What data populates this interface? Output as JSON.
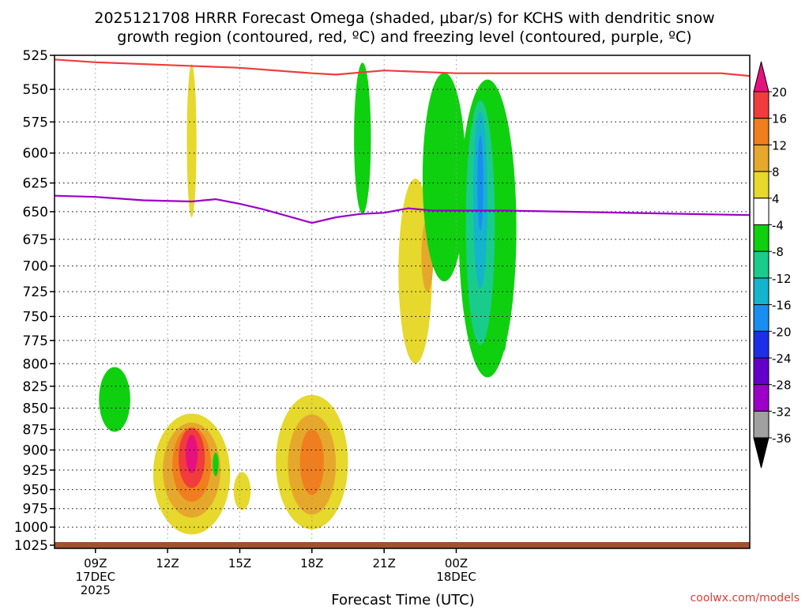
{
  "chart_data": {
    "type": "heatmap",
    "title_line1": "2025121708 HRRR Forecast Omega (shaded, μbar/s) for KCHS with dendritic snow",
    "title_line2": "growth region (contoured, red, ºC) and freezing level (contoured, purple, ºC)",
    "xlabel": "Forecast Time (UTC)",
    "credit": "coolwx.com/models",
    "y_ticks": [
      525,
      550,
      575,
      600,
      625,
      650,
      675,
      700,
      725,
      750,
      775,
      800,
      825,
      850,
      875,
      900,
      925,
      950,
      975,
      1000,
      1025
    ],
    "y_tick_labels": [
      "525",
      "550",
      "575",
      "600",
      "625",
      "650",
      "675",
      "700",
      "725",
      "750",
      "775",
      "800",
      "825",
      "850",
      "875",
      "900",
      "925",
      "950",
      "975",
      "1000",
      "1025"
    ],
    "x_range_hours": [
      7.3,
      36.2
    ],
    "x_ticks": [
      {
        "hour": 9,
        "label": "09Z",
        "sub1": "17DEC",
        "sub2": "2025"
      },
      {
        "hour": 12,
        "label": "12Z",
        "sub1": "",
        "sub2": ""
      },
      {
        "hour": 15,
        "label": "15Z",
        "sub1": "",
        "sub2": ""
      },
      {
        "hour": 18,
        "label": "18Z",
        "sub1": "",
        "sub2": ""
      },
      {
        "hour": 21,
        "label": "21Z",
        "sub1": "",
        "sub2": ""
      },
      {
        "hour": 24,
        "label": "00Z",
        "sub1": "18DEC",
        "sub2": ""
      }
    ],
    "colorbar": {
      "levels": [
        -36,
        -32,
        -28,
        -24,
        -20,
        -16,
        -12,
        -8,
        -4,
        4,
        8,
        12,
        16,
        20
      ],
      "labels": [
        "-36",
        "-32",
        "-28",
        "-24",
        "-20",
        "-16",
        "-12",
        "-8",
        "-4",
        "4",
        "8",
        "12",
        "16",
        "20"
      ],
      "colors": [
        "#000000",
        "#a0a0a0",
        "#9b00c9",
        "#6400cc",
        "#1e2ee6",
        "#1a8ef0",
        "#14b4cc",
        "#1acc8c",
        "#0fd00f",
        "#ffffff",
        "#e6d82c",
        "#e6a82c",
        "#f07e1e",
        "#f03c3c",
        "#e6117e"
      ]
    },
    "dendritic_line": {
      "color": "#f03c3c",
      "x": [
        7.3,
        9,
        12,
        15,
        18,
        19,
        21,
        24,
        25,
        26,
        27,
        28,
        29,
        30,
        31,
        32,
        33,
        34,
        35,
        36.2
      ],
      "p": [
        528,
        530,
        532,
        534,
        538,
        539,
        536,
        538,
        538,
        538,
        538,
        538,
        538,
        538,
        538,
        538,
        538,
        538,
        538,
        540
      ]
    },
    "freezing_line": {
      "color": "#9b00c9",
      "x": [
        7.3,
        9,
        11,
        13,
        14,
        15,
        16,
        17,
        18,
        19,
        20,
        21,
        22,
        23,
        24,
        25,
        26,
        36.2
      ],
      "p": [
        636,
        637,
        640,
        641,
        639,
        643,
        648,
        654,
        660,
        655,
        652,
        651,
        647,
        649,
        649,
        649,
        649,
        653
      ]
    },
    "omega_regions": [
      {
        "level": "4",
        "center": [
          13.0,
          590
        ],
        "rx_hours": 0.2,
        "ry_hpa": 65
      },
      {
        "level": "-4",
        "center": [
          9.8,
          840
        ],
        "rx_hours": 0.65,
        "ry_hpa": 38
      },
      {
        "level": "4",
        "center": [
          13.0,
          930
        ],
        "rx_hours": 1.6,
        "ry_hpa": 80
      },
      {
        "level": "8",
        "center": [
          13.0,
          925
        ],
        "rx_hours": 1.2,
        "ry_hpa": 62
      },
      {
        "level": "12",
        "center": [
          13.0,
          918
        ],
        "rx_hours": 0.8,
        "ry_hpa": 48
      },
      {
        "level": "16",
        "center": [
          13.0,
          910
        ],
        "rx_hours": 0.55,
        "ry_hpa": 38
      },
      {
        "level": "20",
        "center": [
          13.0,
          905
        ],
        "rx_hours": 0.25,
        "ry_hpa": 24
      },
      {
        "level": "-4",
        "center": [
          14.0,
          918
        ],
        "rx_hours": 0.12,
        "ry_hpa": 15
      },
      {
        "level": "4",
        "center": [
          15.1,
          952
        ],
        "rx_hours": 0.35,
        "ry_hpa": 25
      },
      {
        "level": "4",
        "center": [
          18.0,
          915
        ],
        "rx_hours": 1.5,
        "ry_hpa": 88
      },
      {
        "level": "8",
        "center": [
          18.0,
          918
        ],
        "rx_hours": 1.0,
        "ry_hpa": 65
      },
      {
        "level": "12",
        "center": [
          18.0,
          915
        ],
        "rx_hours": 0.5,
        "ry_hpa": 42
      },
      {
        "level": "4",
        "center": [
          22.3,
          705
        ],
        "rx_hours": 0.7,
        "ry_hpa": 95
      },
      {
        "level": "8",
        "center": [
          22.8,
          690
        ],
        "rx_hours": 0.25,
        "ry_hpa": 35
      },
      {
        "level": "-4",
        "center": [
          20.1,
          588
        ],
        "rx_hours": 0.35,
        "ry_hpa": 64
      },
      {
        "level": "-4",
        "center": [
          23.5,
          620
        ],
        "rx_hours": 0.9,
        "ry_hpa": 95
      },
      {
        "level": "-4",
        "center": [
          25.3,
          665
        ],
        "rx_hours": 1.2,
        "ry_hpa": 150
      },
      {
        "level": "-4",
        "center": [
          26.0,
          728
        ],
        "rx_hours": 0.14,
        "ry_hpa": 58
      },
      {
        "level": "-8",
        "center": [
          25.0,
          660
        ],
        "rx_hours": 0.6,
        "ry_hpa": 120
      },
      {
        "level": "-12",
        "center": [
          25.0,
          640
        ],
        "rx_hours": 0.3,
        "ry_hpa": 82
      },
      {
        "level": "-16",
        "center": [
          25.0,
          625
        ],
        "rx_hours": 0.12,
        "ry_hpa": 42
      }
    ]
  }
}
